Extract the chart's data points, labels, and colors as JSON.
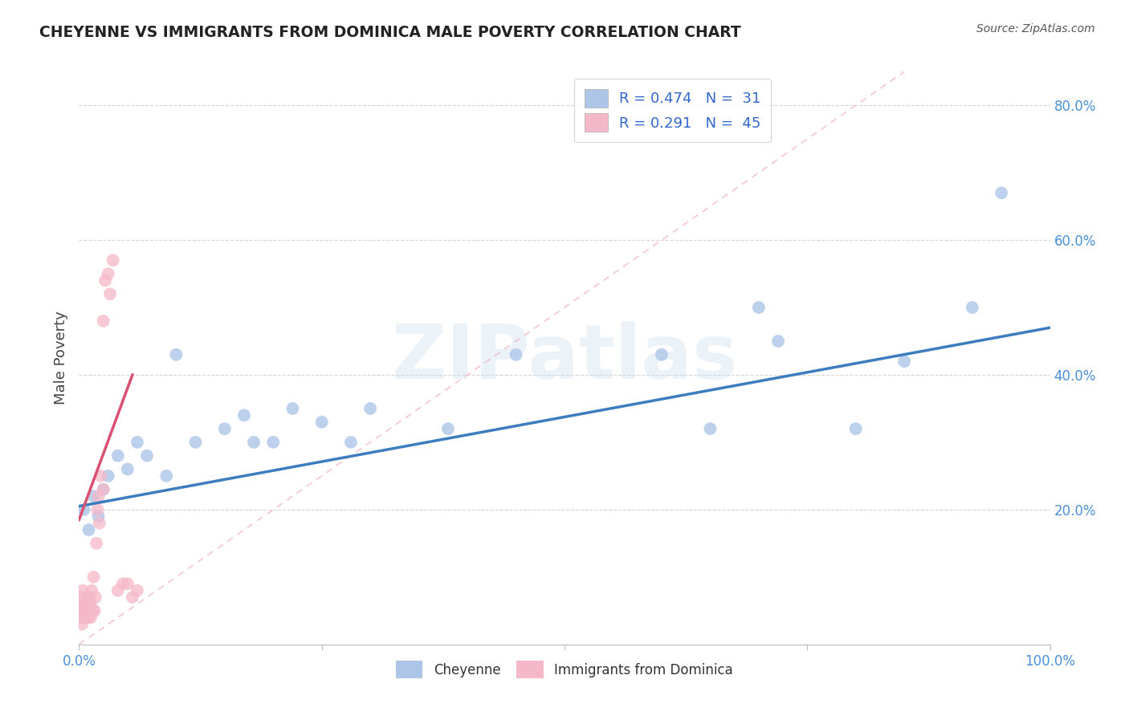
{
  "title": "CHEYENNE VS IMMIGRANTS FROM DOMINICA MALE POVERTY CORRELATION CHART",
  "source": "Source: ZipAtlas.com",
  "ylabel": "Male Poverty",
  "xlim": [
    0,
    1.0
  ],
  "ylim": [
    0,
    0.85
  ],
  "xtick_vals": [
    0.0,
    0.25,
    0.5,
    0.75,
    1.0
  ],
  "xtick_labels": [
    "0.0%",
    "",
    "",
    "",
    "100.0%"
  ],
  "ytick_vals": [
    0.2,
    0.4,
    0.6,
    0.8
  ],
  "ytick_labels": [
    "20.0%",
    "40.0%",
    "60.0%",
    "80.0%"
  ],
  "cheyenne_color": "#adc6e8",
  "dominica_color": "#f5b8c8",
  "cheyenne_line_color": "#3d7dbf",
  "dominica_line_color": "#d95070",
  "diag_line_color": "#f0b8c8",
  "watermark_text": "ZIPatlas",
  "cheyenne_scatter_x": [
    0.005,
    0.01,
    0.015,
    0.02,
    0.025,
    0.03,
    0.04,
    0.05,
    0.06,
    0.07,
    0.09,
    0.1,
    0.12,
    0.15,
    0.17,
    0.18,
    0.2,
    0.22,
    0.25,
    0.28,
    0.3,
    0.38,
    0.45,
    0.6,
    0.65,
    0.7,
    0.72,
    0.8,
    0.85,
    0.92,
    0.95
  ],
  "cheyenne_scatter_y": [
    0.2,
    0.17,
    0.22,
    0.19,
    0.23,
    0.25,
    0.28,
    0.26,
    0.3,
    0.28,
    0.25,
    0.43,
    0.3,
    0.32,
    0.34,
    0.3,
    0.3,
    0.35,
    0.33,
    0.3,
    0.35,
    0.32,
    0.43,
    0.43,
    0.32,
    0.5,
    0.45,
    0.32,
    0.42,
    0.5,
    0.67
  ],
  "dominica_scatter_x": [
    0.001,
    0.001,
    0.002,
    0.002,
    0.003,
    0.003,
    0.004,
    0.004,
    0.005,
    0.005,
    0.006,
    0.006,
    0.007,
    0.007,
    0.008,
    0.008,
    0.009,
    0.009,
    0.01,
    0.01,
    0.011,
    0.011,
    0.012,
    0.012,
    0.013,
    0.014,
    0.015,
    0.016,
    0.017,
    0.018,
    0.019,
    0.02,
    0.021,
    0.022,
    0.025,
    0.025,
    0.027,
    0.03,
    0.032,
    0.035,
    0.04,
    0.045,
    0.05,
    0.055,
    0.06
  ],
  "dominica_scatter_y": [
    0.04,
    0.07,
    0.05,
    0.06,
    0.03,
    0.06,
    0.05,
    0.08,
    0.04,
    0.06,
    0.05,
    0.04,
    0.06,
    0.05,
    0.07,
    0.04,
    0.06,
    0.05,
    0.04,
    0.06,
    0.05,
    0.07,
    0.04,
    0.06,
    0.08,
    0.05,
    0.1,
    0.05,
    0.07,
    0.15,
    0.2,
    0.22,
    0.18,
    0.25,
    0.23,
    0.48,
    0.54,
    0.55,
    0.52,
    0.57,
    0.08,
    0.09,
    0.09,
    0.07,
    0.08
  ],
  "cheyenne_trend_x": [
    0.0,
    1.0
  ],
  "cheyenne_trend_y": [
    0.205,
    0.47
  ],
  "dominica_trend_x": [
    0.0,
    0.055
  ],
  "dominica_trend_y": [
    0.185,
    0.4
  ],
  "diag_line_x": [
    0.0,
    0.85
  ],
  "diag_line_y": [
    0.0,
    0.85
  ],
  "background_color": "#ffffff",
  "grid_color": "#cccccc",
  "tick_color": "#4a90d9",
  "legend_label_color": "#3366cc"
}
